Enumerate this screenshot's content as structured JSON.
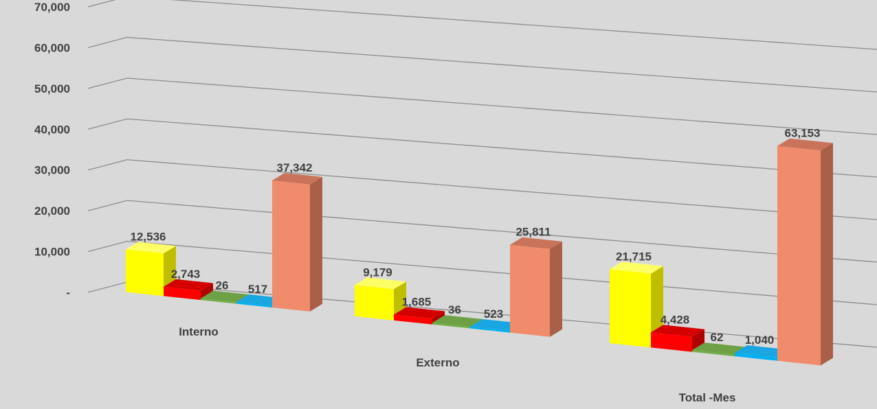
{
  "chart_data": {
    "type": "bar",
    "style": "3d-clustered-column",
    "categories": [
      "Interno",
      "Externo",
      "Total -Mes"
    ],
    "series": [
      {
        "values": [
          12536,
          9179,
          21715
        ],
        "labels": [
          "12,536",
          "9,179",
          "21,715"
        ],
        "color": "#ffff00",
        "side_color": "#bfbf00",
        "top_color": "#ffff66"
      },
      {
        "values": [
          2743,
          1685,
          4428
        ],
        "labels": [
          "2,743",
          "1,685",
          "4,428"
        ],
        "color": "#ff0000",
        "side_color": "#b00000",
        "top_color": "#d40000"
      },
      {
        "values": [
          26,
          36,
          62
        ],
        "labels": [
          "26",
          "36",
          "62"
        ],
        "color": "#70ad47",
        "side_color": "#507d33",
        "top_color": "#6ea046"
      },
      {
        "values": [
          517,
          523,
          1040
        ],
        "labels": [
          "517",
          "523",
          "1,040"
        ],
        "color": "#00b0f0",
        "side_color": "#0080b0",
        "top_color": "#1aa6e0"
      },
      {
        "values": [
          37342,
          25811,
          63153
        ],
        "labels": [
          "37,342",
          "25,811",
          "63,153"
        ],
        "color": "#f08c6c",
        "side_color": "#a95f48",
        "top_color": "#c8735a"
      }
    ],
    "y_ticks": [
      "-",
      "10,000",
      "20,000",
      "30,000",
      "40,000",
      "50,000",
      "60,000",
      "70,000"
    ],
    "ylim": [
      0,
      70000
    ],
    "grid": true,
    "legend": "none",
    "title": "",
    "xlabel": "",
    "ylabel": ""
  }
}
